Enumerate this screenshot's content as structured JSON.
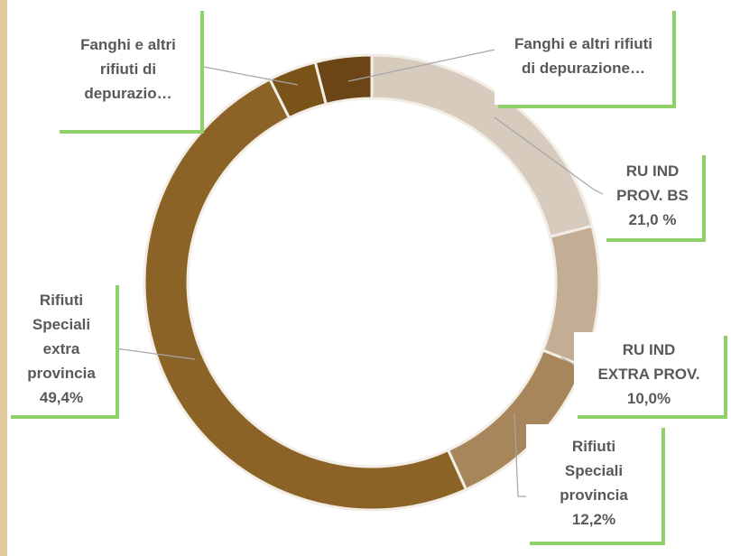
{
  "chart_data": {
    "type": "donut",
    "categories": [
      "RU IND PROV. BS",
      "RU IND EXTRA PROV.",
      "Rifiuti Speciali provincia",
      "Rifiuti Speciali extra provincia",
      "Fanghi e altri rifiuti di depurazio…",
      "Fanghi e altri rifiuti di depurazione…"
    ],
    "values": [
      21.0,
      10.0,
      12.2,
      49.4,
      3.4,
      4.0
    ],
    "value_labels": [
      "21,0 %",
      "10,0%",
      "12,2%",
      "49,4%",
      null,
      null
    ],
    "colors": [
      "#d6cbbd",
      "#c3ae95",
      "#a8865b",
      "#8b6326",
      "#7a5319",
      "#6b4516"
    ]
  }
}
